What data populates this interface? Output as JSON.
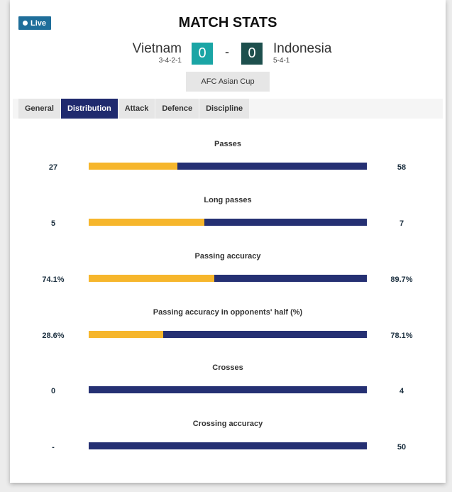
{
  "header": {
    "live_label": "Live",
    "title": "MATCH STATS",
    "competition": "AFC Asian Cup",
    "score_separator": "-"
  },
  "home": {
    "name": "Vietnam",
    "formation": "3-4-2-1",
    "score": "0",
    "color": "#1aa5a5"
  },
  "away": {
    "name": "Indonesia",
    "formation": "5-4-1",
    "score": "0",
    "color": "#1d4f4d"
  },
  "tabs": [
    {
      "label": "General",
      "active": false
    },
    {
      "label": "Distribution",
      "active": true
    },
    {
      "label": "Attack",
      "active": false
    },
    {
      "label": "Defence",
      "active": false
    },
    {
      "label": "Discipline",
      "active": false
    }
  ],
  "colors": {
    "home_bar": "#f6b62c",
    "away_bar": "#253073",
    "active_tab": "#1f2a6e"
  },
  "stats": [
    {
      "label": "Passes",
      "home": "27",
      "away": "58",
      "home_share": 0.318
    },
    {
      "label": "Long passes",
      "home": "5",
      "away": "7",
      "home_share": 0.417
    },
    {
      "label": "Passing accuracy",
      "home": "74.1%",
      "away": "89.7%",
      "home_share": 0.452
    },
    {
      "label": "Passing accuracy in opponents' half (%)",
      "home": "28.6%",
      "away": "78.1%",
      "home_share": 0.268
    },
    {
      "label": "Crosses",
      "home": "0",
      "away": "4",
      "home_share": 0
    },
    {
      "label": "Crossing accuracy",
      "home": "-",
      "away": "50",
      "home_share": 0
    }
  ]
}
